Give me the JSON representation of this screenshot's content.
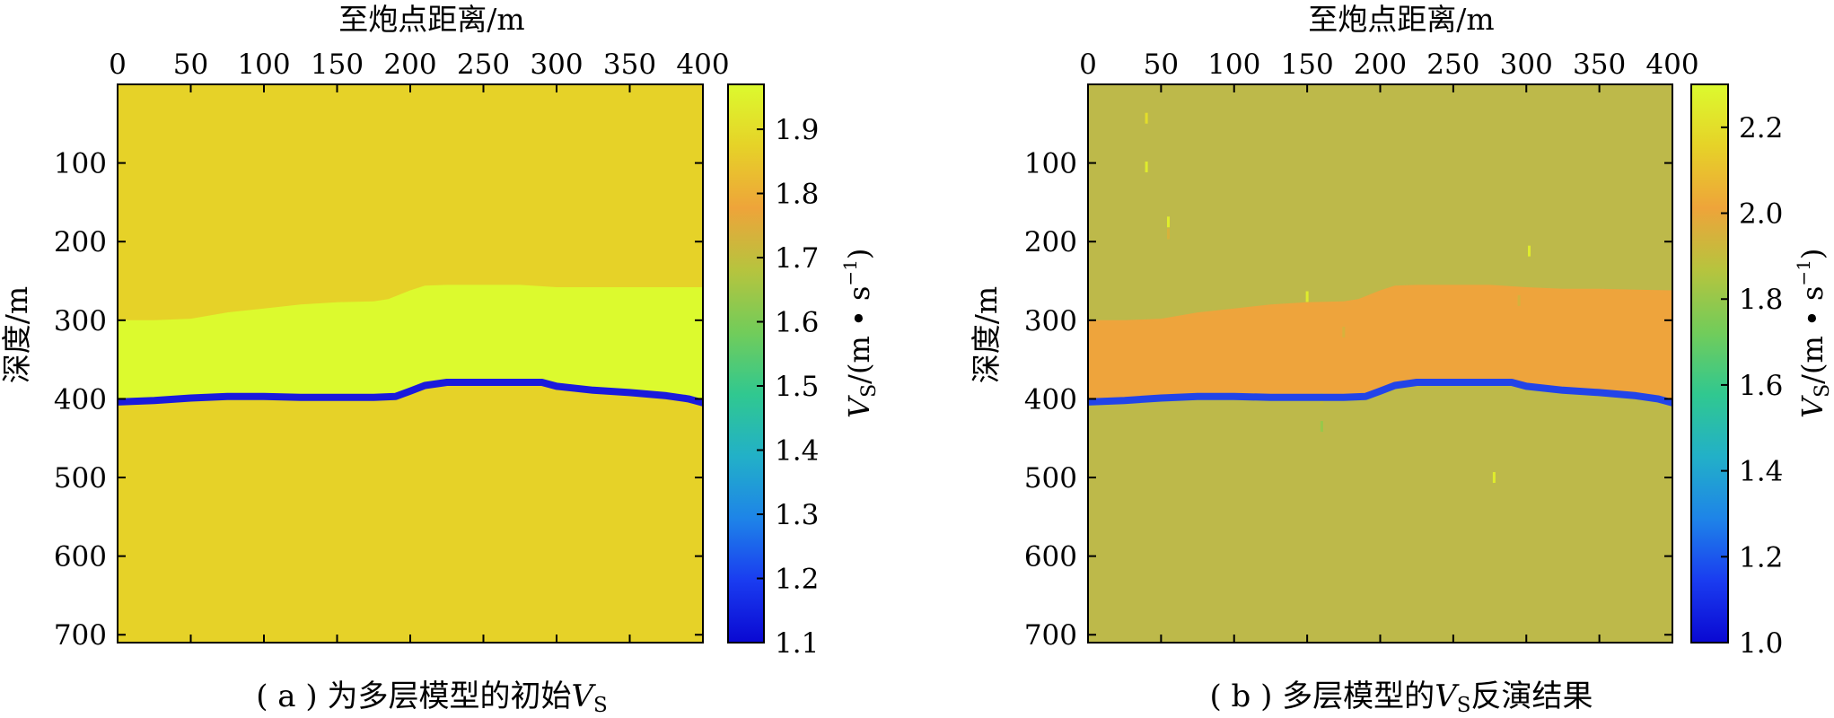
{
  "chart_data": [
    {
      "type": "heatmap",
      "id": "a",
      "caption": {
        "pre": "( a ) 为多层模型的初始",
        "var": "V",
        "sub": "S",
        "post": ""
      },
      "xlabel": "至炮点距离/m",
      "ylabel": "深度/m",
      "x_ticks": [
        "0",
        "50",
        "100",
        "150",
        "200",
        "250",
        "300",
        "350",
        "400"
      ],
      "x_tick_values": [
        0,
        50,
        100,
        150,
        200,
        250,
        300,
        350,
        400
      ],
      "xlim": [
        0,
        400
      ],
      "y_ticks": [
        "100",
        "200",
        "300",
        "400",
        "500",
        "600",
        "700"
      ],
      "y_tick_values": [
        100,
        200,
        300,
        400,
        500,
        600,
        700
      ],
      "ylim": [
        0,
        710
      ],
      "colorbar": {
        "label_var": "V",
        "label_sub": "S",
        "label_unit": "/(m • s",
        "label_exp": "−1",
        "label_close": ")",
        "ticks": [
          "1.1",
          "1.2",
          "1.3",
          "1.4",
          "1.5",
          "1.6",
          "1.7",
          "1.8",
          "1.9"
        ],
        "tick_values": [
          1.1,
          1.2,
          1.3,
          1.4,
          1.5,
          1.6,
          1.7,
          1.8,
          1.9
        ],
        "range": [
          1.1,
          1.97
        ]
      },
      "background_value": 1.9,
      "background_color": "#e6d228",
      "layer": {
        "value": 1.97,
        "color": "#dcfa2e",
        "top_x": [
          0,
          25,
          50,
          75,
          100,
          125,
          150,
          175,
          185,
          200,
          210,
          225,
          250,
          275,
          300,
          325,
          350,
          375,
          400
        ],
        "top_depth": [
          300,
          300,
          298,
          290,
          285,
          280,
          277,
          276,
          273,
          262,
          256,
          255,
          255,
          255,
          258,
          258,
          258,
          258,
          258
        ]
      },
      "low_velocity_line": {
        "value": 1.1,
        "color": "#1a1adc",
        "x": [
          0,
          25,
          50,
          75,
          100,
          125,
          150,
          175,
          190,
          200,
          210,
          225,
          250,
          275,
          290,
          300,
          325,
          350,
          375,
          390,
          400
        ],
        "depth": [
          404,
          402,
          399,
          397,
          397,
          398,
          398,
          398,
          397,
          390,
          383,
          379,
          379,
          379,
          379,
          384,
          389,
          392,
          396,
          400,
          405
        ]
      }
    },
    {
      "type": "heatmap",
      "id": "b",
      "caption": {
        "pre": "( b ) 多层模型的",
        "var": "V",
        "sub": "S",
        "post": "反演结果"
      },
      "xlabel": "至炮点距离/m",
      "ylabel": "深度/m",
      "x_ticks": [
        "0",
        "50",
        "100",
        "150",
        "200",
        "250",
        "300",
        "350",
        "400"
      ],
      "x_tick_values": [
        0,
        50,
        100,
        150,
        200,
        250,
        300,
        350,
        400
      ],
      "xlim": [
        0,
        400
      ],
      "y_ticks": [
        "100",
        "200",
        "300",
        "400",
        "500",
        "600",
        "700"
      ],
      "y_tick_values": [
        100,
        200,
        300,
        400,
        500,
        600,
        700
      ],
      "ylim": [
        0,
        710
      ],
      "colorbar": {
        "label_var": "V",
        "label_sub": "S",
        "label_unit": "/(m • s",
        "label_exp": "−1",
        "label_close": ")",
        "ticks": [
          "1.0",
          "1.2",
          "1.4",
          "1.6",
          "1.8",
          "2.0",
          "2.2"
        ],
        "tick_values": [
          1.0,
          1.2,
          1.4,
          1.6,
          1.8,
          2.0,
          2.2
        ],
        "range": [
          1.0,
          2.3
        ]
      },
      "background_value": 1.9,
      "background_color": "#bdb94a",
      "layer": {
        "value": 2.1,
        "color": "#eea43c",
        "top_x": [
          0,
          25,
          50,
          75,
          100,
          125,
          150,
          175,
          185,
          200,
          210,
          225,
          250,
          275,
          300,
          325,
          350,
          375,
          400
        ],
        "top_depth": [
          300,
          300,
          298,
          290,
          285,
          280,
          277,
          276,
          273,
          262,
          256,
          255,
          255,
          255,
          258,
          260,
          260,
          261,
          262
        ]
      },
      "low_velocity_line": {
        "value": 1.1,
        "color": "#2244e8",
        "x": [
          0,
          25,
          50,
          75,
          100,
          125,
          150,
          175,
          190,
          200,
          210,
          225,
          250,
          275,
          290,
          300,
          325,
          350,
          375,
          390,
          400
        ],
        "depth": [
          404,
          402,
          399,
          397,
          397,
          398,
          398,
          398,
          397,
          390,
          383,
          379,
          379,
          379,
          379,
          384,
          389,
          392,
          396,
          400,
          405
        ]
      },
      "artifacts": [
        {
          "x": 40,
          "depth": 43,
          "value": 2.2
        },
        {
          "x": 40,
          "depth": 105,
          "value": 2.25
        },
        {
          "x": 55,
          "depth": 175,
          "value": 2.25
        },
        {
          "x": 55,
          "depth": 190,
          "value": 1.95
        },
        {
          "x": 150,
          "depth": 270,
          "value": 2.25
        },
        {
          "x": 175,
          "depth": 315,
          "value": 1.95
        },
        {
          "x": 160,
          "depth": 400,
          "value": 1.9
        },
        {
          "x": 160,
          "depth": 435,
          "value": 1.8
        },
        {
          "x": 278,
          "depth": 500,
          "value": 2.25
        },
        {
          "x": 295,
          "depth": 275,
          "value": 1.95
        },
        {
          "x": 302,
          "depth": 212,
          "value": 2.25
        }
      ]
    }
  ],
  "colormap_stops": [
    "#0a08d2",
    "#1a3cf0",
    "#1e84e8",
    "#22b0c8",
    "#30c890",
    "#72cc5a",
    "#b6c43e",
    "#eea43a",
    "#e6d228",
    "#dcfa2e"
  ]
}
